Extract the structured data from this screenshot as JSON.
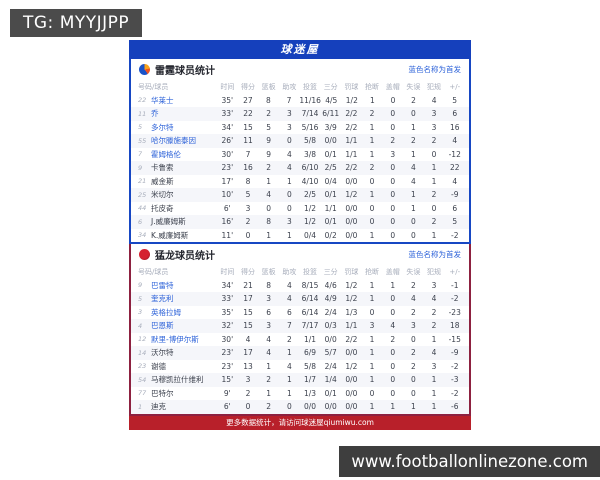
{
  "overlays": {
    "tg_badge": "TG: MYYJJPP",
    "watermark": "www.footballonlinezone.com"
  },
  "brand": "球迷屋",
  "legend": "蓝色名称为首发",
  "columns": [
    "号码/球员",
    "时间",
    "得分",
    "篮板",
    "助攻",
    "投篮",
    "三分",
    "罚球",
    "抢断",
    "盖帽",
    "失误",
    "犯规",
    "+/-"
  ],
  "footer": "更多数据统计，请访问球迷屋qiumiwu.com",
  "colors": {
    "brand_blue": "#1540bc",
    "thunder_accent": "#1747c3",
    "raptors_accent": "#8d2140",
    "footer_red": "#b8202a",
    "starter_blue": "#2e63d9"
  },
  "sections": [
    {
      "title": "雷霆球员统计",
      "icon": "thunder-logo-icon",
      "logo_class": "thunder",
      "accent": "#1747c3",
      "players": [
        {
          "num": "22",
          "name": "华莱士",
          "starter": true,
          "stats": [
            "35'",
            "27",
            "8",
            "7",
            "11/16",
            "4/5",
            "1/2",
            "1",
            "0",
            "2",
            "4",
            "5"
          ]
        },
        {
          "num": "11",
          "name": "乔",
          "starter": true,
          "stats": [
            "33'",
            "22",
            "2",
            "3",
            "7/14",
            "6/11",
            "2/2",
            "2",
            "0",
            "0",
            "3",
            "6"
          ]
        },
        {
          "num": "5",
          "name": "多尔特",
          "starter": true,
          "stats": [
            "34'",
            "15",
            "5",
            "3",
            "5/16",
            "3/9",
            "2/2",
            "1",
            "0",
            "1",
            "3",
            "16"
          ]
        },
        {
          "num": "55",
          "name": "哈尔滕施泰因",
          "starter": true,
          "stats": [
            "26'",
            "11",
            "9",
            "0",
            "5/8",
            "0/0",
            "1/1",
            "1",
            "2",
            "2",
            "2",
            "4"
          ]
        },
        {
          "num": "7",
          "name": "霍姆格伦",
          "starter": true,
          "stats": [
            "30'",
            "7",
            "9",
            "4",
            "3/8",
            "0/1",
            "1/1",
            "1",
            "3",
            "1",
            "0",
            "-12"
          ]
        },
        {
          "num": "9",
          "name": "卡鲁索",
          "starter": false,
          "stats": [
            "23'",
            "16",
            "2",
            "4",
            "6/10",
            "2/5",
            "2/2",
            "2",
            "0",
            "4",
            "1",
            "22"
          ]
        },
        {
          "num": "21",
          "name": "威金斯",
          "starter": false,
          "stats": [
            "17'",
            "8",
            "1",
            "1",
            "4/10",
            "0/4",
            "0/0",
            "0",
            "0",
            "4",
            "1",
            "4"
          ]
        },
        {
          "num": "25",
          "name": "米切尔",
          "starter": false,
          "stats": [
            "10'",
            "5",
            "4",
            "0",
            "2/5",
            "0/1",
            "1/2",
            "1",
            "0",
            "1",
            "2",
            "-9"
          ]
        },
        {
          "num": "44",
          "name": "托皮奇",
          "starter": false,
          "stats": [
            "6'",
            "3",
            "0",
            "0",
            "1/2",
            "1/1",
            "0/0",
            "0",
            "0",
            "1",
            "0",
            "6"
          ]
        },
        {
          "num": "6",
          "name": "J.威廉姆斯",
          "starter": false,
          "stats": [
            "16'",
            "2",
            "8",
            "3",
            "1/2",
            "0/1",
            "0/0",
            "0",
            "0",
            "0",
            "2",
            "5"
          ]
        },
        {
          "num": "34",
          "name": "K.威廉姆斯",
          "starter": false,
          "stats": [
            "11'",
            "0",
            "1",
            "1",
            "0/4",
            "0/2",
            "0/0",
            "1",
            "0",
            "0",
            "1",
            "-2"
          ]
        }
      ]
    },
    {
      "title": "猛龙球员统计",
      "icon": "raptors-logo-icon",
      "logo_class": "raptors",
      "accent": "#8d2140",
      "players": [
        {
          "num": "9",
          "name": "巴雷特",
          "starter": true,
          "stats": [
            "34'",
            "21",
            "8",
            "4",
            "8/15",
            "4/6",
            "1/2",
            "1",
            "1",
            "2",
            "3",
            "-1"
          ]
        },
        {
          "num": "5",
          "name": "奎克利",
          "starter": true,
          "stats": [
            "33'",
            "17",
            "3",
            "4",
            "6/14",
            "4/9",
            "1/2",
            "1",
            "0",
            "4",
            "4",
            "-2"
          ]
        },
        {
          "num": "3",
          "name": "英格拉姆",
          "starter": true,
          "stats": [
            "35'",
            "15",
            "6",
            "6",
            "6/14",
            "2/4",
            "1/3",
            "0",
            "0",
            "2",
            "2",
            "-23"
          ]
        },
        {
          "num": "4",
          "name": "巴恩斯",
          "starter": true,
          "stats": [
            "32'",
            "15",
            "3",
            "7",
            "7/17",
            "0/3",
            "1/1",
            "3",
            "4",
            "3",
            "2",
            "18"
          ]
        },
        {
          "num": "12",
          "name": "默里-博伊尔斯",
          "starter": true,
          "stats": [
            "30'",
            "4",
            "4",
            "2",
            "1/1",
            "0/0",
            "2/2",
            "1",
            "2",
            "0",
            "1",
            "-15"
          ]
        },
        {
          "num": "14",
          "name": "沃尔特",
          "starter": false,
          "stats": [
            "23'",
            "17",
            "4",
            "1",
            "6/9",
            "5/7",
            "0/0",
            "1",
            "0",
            "2",
            "4",
            "-9"
          ]
        },
        {
          "num": "23",
          "name": "谢德",
          "starter": false,
          "stats": [
            "23'",
            "13",
            "1",
            "4",
            "5/8",
            "2/4",
            "1/2",
            "1",
            "0",
            "2",
            "3",
            "-2"
          ]
        },
        {
          "num": "54",
          "name": "马穆凯拉什维利",
          "starter": false,
          "stats": [
            "15'",
            "3",
            "2",
            "1",
            "1/7",
            "1/4",
            "0/0",
            "1",
            "0",
            "0",
            "1",
            "-3"
          ]
        },
        {
          "num": "77",
          "name": "巴特尔",
          "starter": false,
          "stats": [
            "9'",
            "2",
            "1",
            "1",
            "1/3",
            "0/1",
            "0/0",
            "0",
            "0",
            "0",
            "1",
            "-2"
          ]
        },
        {
          "num": "1",
          "name": "迪克",
          "starter": false,
          "stats": [
            "6'",
            "0",
            "2",
            "0",
            "0/0",
            "0/0",
            "0/0",
            "1",
            "1",
            "1",
            "1",
            "-6"
          ]
        }
      ]
    }
  ]
}
